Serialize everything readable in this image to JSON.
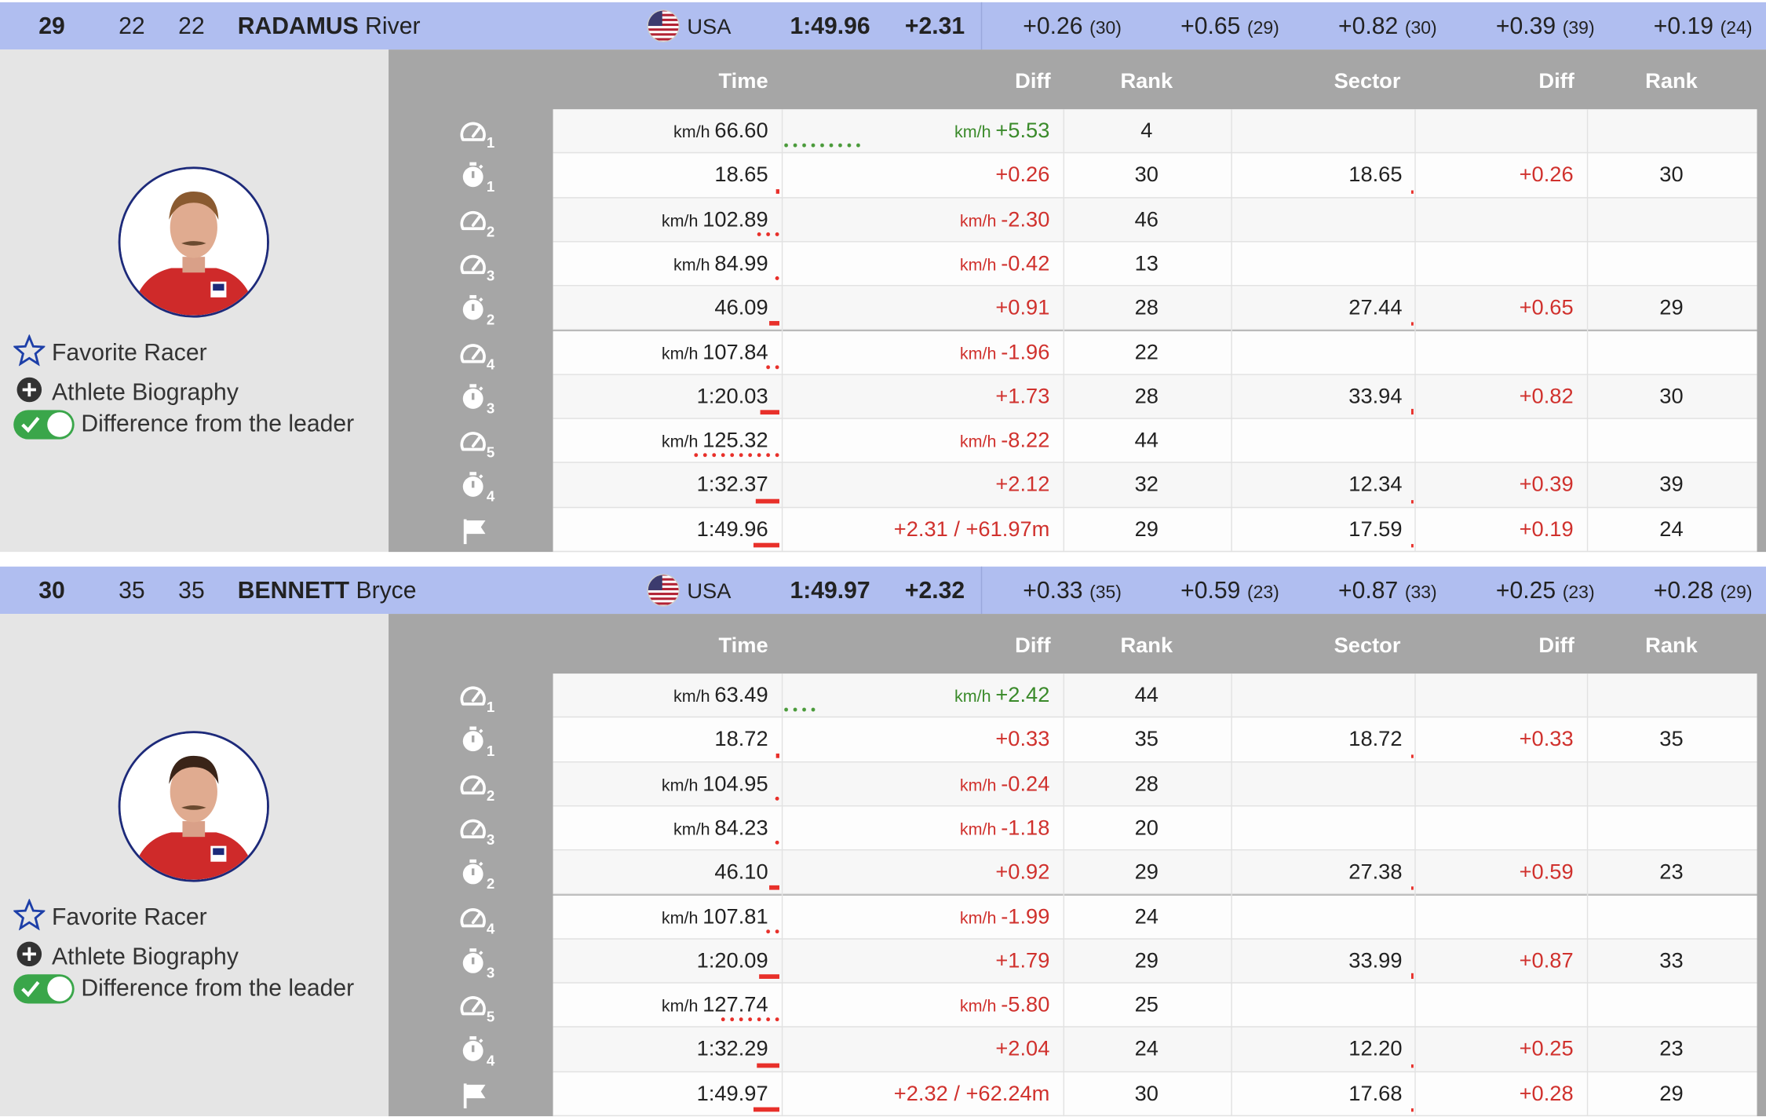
{
  "columns": {
    "time": "Time",
    "diff": "Diff",
    "rank": "Rank",
    "sector": "Sector",
    "sector_diff": "Diff",
    "sector_rank": "Rank"
  },
  "options": {
    "favorite": "Favorite Racer",
    "biography": "Athlete Biography",
    "difference": "Difference from the leader",
    "difference_enabled": true
  },
  "colors": {
    "header_bg": "#b0bef0",
    "positive": "#3a8a2a",
    "negative": "#d0312d",
    "toggle": "#3aa64a"
  },
  "athletes": [
    {
      "rank": "29",
      "bib": "22",
      "start": "22",
      "last_name": "RADAMUS",
      "first_name": "River",
      "country": "USA",
      "flag": "us-flag-icon",
      "time": "1:49.96",
      "diff": "+2.31",
      "splits": [
        {
          "diff": "+0.26",
          "rank": "(30)"
        },
        {
          "diff": "+0.65",
          "rank": "(29)"
        },
        {
          "diff": "+0.82",
          "rank": "(30)"
        },
        {
          "diff": "+0.39",
          "rank": "(39)"
        },
        {
          "diff": "+0.19",
          "rank": "(24)"
        }
      ],
      "rows": [
        {
          "icon": "speed",
          "n": "1",
          "unit": "km/h",
          "time": "66.60",
          "diff": "+5.53",
          "rank": "4"
        },
        {
          "icon": "split",
          "n": "1",
          "time": "18.65",
          "diff": "+0.26",
          "rank": "30",
          "sector": "18.65",
          "sector_diff": "+0.26",
          "sector_rank": "30"
        },
        {
          "icon": "speed",
          "n": "2",
          "unit": "km/h",
          "time": "102.89",
          "diff": "-2.30",
          "rank": "46"
        },
        {
          "icon": "speed",
          "n": "3",
          "unit": "km/h",
          "time": "84.99",
          "diff": "-0.42",
          "rank": "13"
        },
        {
          "icon": "split",
          "n": "2",
          "time": "46.09",
          "diff": "+0.91",
          "rank": "28",
          "sector": "27.44",
          "sector_diff": "+0.65",
          "sector_rank": "29"
        },
        {
          "icon": "speed",
          "n": "4",
          "unit": "km/h",
          "time": "107.84",
          "diff": "-1.96",
          "rank": "22"
        },
        {
          "icon": "split",
          "n": "3",
          "time": "1:20.03",
          "diff": "+1.73",
          "rank": "28",
          "sector": "33.94",
          "sector_diff": "+0.82",
          "sector_rank": "30"
        },
        {
          "icon": "speed",
          "n": "5",
          "unit": "km/h",
          "time": "125.32",
          "diff": "-8.22",
          "rank": "44"
        },
        {
          "icon": "split",
          "n": "4",
          "time": "1:32.37",
          "diff": "+2.12",
          "rank": "32",
          "sector": "12.34",
          "sector_diff": "+0.39",
          "sector_rank": "39"
        },
        {
          "icon": "finish",
          "n": "",
          "time": "1:49.96",
          "diff": "+2.31 / +61.97m",
          "rank": "29",
          "sector": "17.59",
          "sector_diff": "+0.19",
          "sector_rank": "24"
        }
      ]
    },
    {
      "rank": "30",
      "bib": "35",
      "start": "35",
      "last_name": "BENNETT",
      "first_name": "Bryce",
      "country": "USA",
      "flag": "us-flag-icon",
      "time": "1:49.97",
      "diff": "+2.32",
      "splits": [
        {
          "diff": "+0.33",
          "rank": "(35)"
        },
        {
          "diff": "+0.59",
          "rank": "(23)"
        },
        {
          "diff": "+0.87",
          "rank": "(33)"
        },
        {
          "diff": "+0.25",
          "rank": "(23)"
        },
        {
          "diff": "+0.28",
          "rank": "(29)"
        }
      ],
      "rows": [
        {
          "icon": "speed",
          "n": "1",
          "unit": "km/h",
          "time": "63.49",
          "diff": "+2.42",
          "rank": "44"
        },
        {
          "icon": "split",
          "n": "1",
          "time": "18.72",
          "diff": "+0.33",
          "rank": "35",
          "sector": "18.72",
          "sector_diff": "+0.33",
          "sector_rank": "35"
        },
        {
          "icon": "speed",
          "n": "2",
          "unit": "km/h",
          "time": "104.95",
          "diff": "-0.24",
          "rank": "28"
        },
        {
          "icon": "speed",
          "n": "3",
          "unit": "km/h",
          "time": "84.23",
          "diff": "-1.18",
          "rank": "20"
        },
        {
          "icon": "split",
          "n": "2",
          "time": "46.10",
          "diff": "+0.92",
          "rank": "29",
          "sector": "27.38",
          "sector_diff": "+0.59",
          "sector_rank": "23"
        },
        {
          "icon": "speed",
          "n": "4",
          "unit": "km/h",
          "time": "107.81",
          "diff": "-1.99",
          "rank": "24"
        },
        {
          "icon": "split",
          "n": "3",
          "time": "1:20.09",
          "diff": "+1.79",
          "rank": "29",
          "sector": "33.99",
          "sector_diff": "+0.87",
          "sector_rank": "33"
        },
        {
          "icon": "speed",
          "n": "5",
          "unit": "km/h",
          "time": "127.74",
          "diff": "-5.80",
          "rank": "25"
        },
        {
          "icon": "split",
          "n": "4",
          "time": "1:32.29",
          "diff": "+2.04",
          "rank": "24",
          "sector": "12.20",
          "sector_diff": "+0.25",
          "sector_rank": "23"
        },
        {
          "icon": "finish",
          "n": "",
          "time": "1:49.97",
          "diff": "+2.32 / +62.24m",
          "rank": "30",
          "sector": "17.68",
          "sector_diff": "+0.28",
          "sector_rank": "29"
        }
      ]
    }
  ]
}
